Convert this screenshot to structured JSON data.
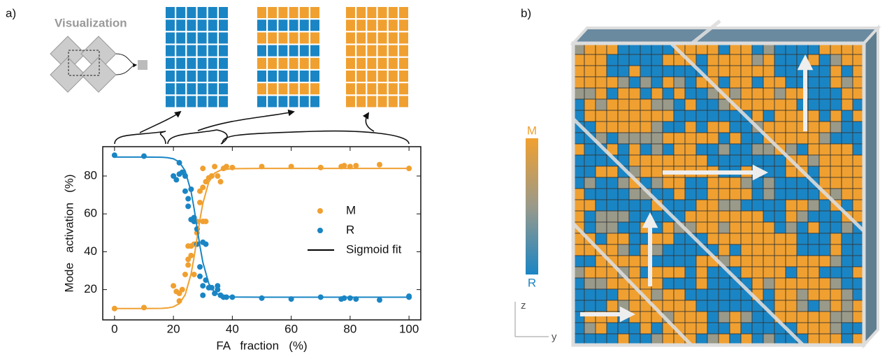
{
  "chart_data": {
    "type": "scatter",
    "xlabel": "FA   fraction   (%)",
    "ylabel": "Mode   activation   (%)",
    "xlim": [
      -4,
      104
    ],
    "ylim": [
      4,
      95.5
    ],
    "xticks": [
      0,
      20,
      40,
      60,
      80,
      100
    ],
    "yticks": [
      20,
      40,
      60,
      80
    ],
    "series": [
      {
        "name": "M",
        "color": "#f0a030",
        "x": [
          0,
          10,
          20,
          21,
          22,
          22,
          23,
          24,
          25,
          25,
          25,
          26,
          26,
          27,
          27,
          28,
          28,
          29,
          29,
          30,
          30,
          31,
          31,
          30,
          32,
          33,
          34,
          35,
          36,
          37,
          38,
          40,
          50,
          60,
          70,
          77,
          78,
          80,
          82,
          90,
          100
        ],
        "values": [
          10,
          10.5,
          22,
          19,
          14,
          18,
          20,
          28,
          33,
          36,
          43,
          43,
          38,
          28,
          44,
          50,
          56,
          66,
          72,
          74,
          56,
          56,
          77,
          84,
          79,
          80,
          85,
          80,
          77,
          84,
          85,
          84.5,
          85,
          85,
          84.5,
          85,
          85.5,
          85,
          85.5,
          86,
          84
        ]
      },
      {
        "name": "R",
        "color": "#1a85c4",
        "x": [
          0,
          10,
          20,
          21,
          22,
          22,
          23,
          24,
          24,
          25,
          25,
          26,
          26,
          27,
          27,
          28,
          28,
          29,
          29,
          30,
          30,
          30,
          31,
          31,
          32,
          33,
          34,
          35,
          35,
          36,
          37,
          38,
          40,
          50,
          60,
          70,
          77,
          78,
          80,
          82,
          90,
          100,
          100
        ],
        "values": [
          91,
          90.5,
          80,
          78,
          87,
          81,
          82,
          80,
          72,
          68,
          64,
          57,
          73,
          56,
          58,
          52,
          44,
          32,
          27,
          45,
          22,
          17,
          25,
          44,
          21,
          21,
          18,
          20,
          22,
          17,
          16,
          16,
          16,
          15.5,
          15,
          16,
          15,
          15.5,
          15.5,
          15,
          14.5,
          16,
          16.5
        ]
      },
      {
        "name": "Sigmoid fit",
        "color": "#000000",
        "x": [
          0,
          10,
          16,
          18,
          20,
          22,
          24,
          26,
          27,
          28,
          29,
          30,
          32,
          34,
          36,
          40,
          50,
          100
        ],
        "curves": [
          {
            "color": "#f0a030",
            "values": [
              10,
              10,
              10.1,
              10.3,
              10.9,
              12.6,
              17.3,
              28.3,
              37,
              47,
              57,
              65.6,
              76.8,
              81.5,
              83.1,
              83.9,
              84,
              84
            ]
          },
          {
            "color": "#1a85c4",
            "values": [
              90,
              90,
              89.9,
              89.7,
              89.1,
              87.4,
              82.7,
              71.7,
              63,
              53,
              43,
              34.4,
              23.2,
              18.5,
              16.9,
              16.1,
              16,
              16
            ]
          }
        ]
      }
    ],
    "legend": "center-right",
    "annotations": {
      "panel_a": "a)",
      "panel_b": "b)",
      "visualization": "Visualization",
      "colorbar_top": "M",
      "colorbar_bottom": "R",
      "axis_z": "z",
      "axis_y": "y"
    }
  }
}
